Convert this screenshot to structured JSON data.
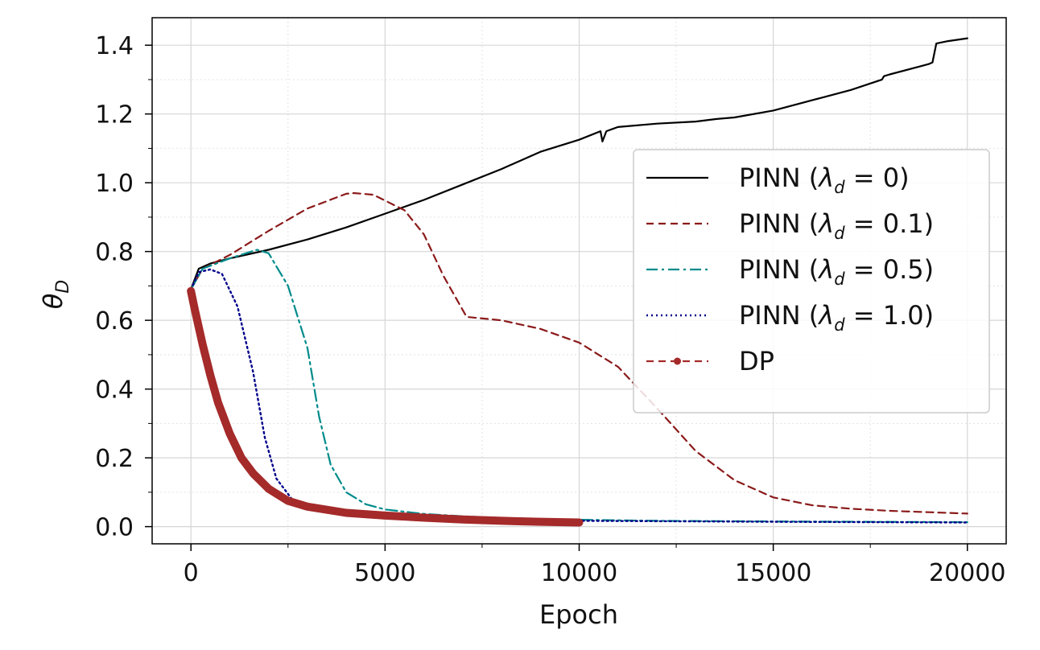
{
  "chart_data": {
    "type": "line",
    "title": "",
    "xlabel": "Epoch",
    "ylabel": "θ_D",
    "ylabel_main": "θ",
    "ylabel_sub": "D",
    "xlim": [
      -1000,
      21000
    ],
    "ylim": [
      -0.05,
      1.48
    ],
    "xticks": [
      0,
      5000,
      10000,
      15000,
      20000
    ],
    "xtick_labels": [
      "0",
      "5000",
      "10000",
      "15000",
      "20000"
    ],
    "yticks": [
      0.0,
      0.2,
      0.4,
      0.6,
      0.8,
      1.0,
      1.2,
      1.4
    ],
    "ytick_labels": [
      "0.0",
      "0.2",
      "0.4",
      "0.6",
      "0.8",
      "1.0",
      "1.2",
      "1.4"
    ],
    "grid": true,
    "legend_position": "center-right",
    "series": [
      {
        "name": "PINN (λ_d = 0)",
        "legend_prefix": "PINN (",
        "legend_lambda": "λ",
        "legend_sub": "d",
        "legend_suffix": " = 0)",
        "color": "#000000",
        "dash": "",
        "width": 2.2,
        "points": [
          [
            0,
            0.69
          ],
          [
            200,
            0.75
          ],
          [
            500,
            0.765
          ],
          [
            1000,
            0.78
          ],
          [
            2000,
            0.805
          ],
          [
            3000,
            0.835
          ],
          [
            4000,
            0.87
          ],
          [
            5000,
            0.91
          ],
          [
            6000,
            0.95
          ],
          [
            7000,
            0.995
          ],
          [
            8000,
            1.04
          ],
          [
            9000,
            1.09
          ],
          [
            10000,
            1.125
          ],
          [
            10550,
            1.15
          ],
          [
            10600,
            1.12
          ],
          [
            10700,
            1.15
          ],
          [
            11000,
            1.162
          ],
          [
            12000,
            1.172
          ],
          [
            13000,
            1.178
          ],
          [
            13500,
            1.185
          ],
          [
            14000,
            1.19
          ],
          [
            15000,
            1.21
          ],
          [
            16000,
            1.24
          ],
          [
            17000,
            1.27
          ],
          [
            17800,
            1.3
          ],
          [
            17850,
            1.31
          ],
          [
            18000,
            1.315
          ],
          [
            19000,
            1.345
          ],
          [
            19100,
            1.35
          ],
          [
            19200,
            1.405
          ],
          [
            19500,
            1.412
          ],
          [
            20000,
            1.42
          ]
        ]
      },
      {
        "name": "PINN (λ_d = 0.1)",
        "legend_prefix": "PINN (",
        "legend_lambda": "λ",
        "legend_sub": "d",
        "legend_suffix": " = 0.1)",
        "color": "#8b1a1a",
        "dash": "9,6",
        "width": 2.2,
        "points": [
          [
            0,
            0.69
          ],
          [
            300,
            0.75
          ],
          [
            1000,
            0.79
          ],
          [
            2000,
            0.86
          ],
          [
            3000,
            0.925
          ],
          [
            4000,
            0.968
          ],
          [
            4200,
            0.97
          ],
          [
            4700,
            0.965
          ],
          [
            5500,
            0.92
          ],
          [
            6000,
            0.85
          ],
          [
            6500,
            0.73
          ],
          [
            7000,
            0.63
          ],
          [
            7100,
            0.61
          ],
          [
            8000,
            0.6
          ],
          [
            9000,
            0.575
          ],
          [
            10000,
            0.535
          ],
          [
            11000,
            0.465
          ],
          [
            12000,
            0.345
          ],
          [
            13000,
            0.22
          ],
          [
            14000,
            0.135
          ],
          [
            15000,
            0.085
          ],
          [
            16000,
            0.062
          ],
          [
            17000,
            0.052
          ],
          [
            18000,
            0.046
          ],
          [
            19000,
            0.042
          ],
          [
            20000,
            0.038
          ]
        ]
      },
      {
        "name": "PINN (λ_d = 0.5)",
        "legend_prefix": "PINN (",
        "legend_lambda": "λ",
        "legend_sub": "d",
        "legend_suffix": " = 0.5)",
        "color": "#008b8b",
        "dash": "14,5,3,5",
        "width": 2.2,
        "points": [
          [
            0,
            0.69
          ],
          [
            300,
            0.75
          ],
          [
            1000,
            0.78
          ],
          [
            1700,
            0.805
          ],
          [
            2000,
            0.795
          ],
          [
            2500,
            0.7
          ],
          [
            3000,
            0.52
          ],
          [
            3300,
            0.32
          ],
          [
            3600,
            0.18
          ],
          [
            4000,
            0.1
          ],
          [
            4500,
            0.065
          ],
          [
            5000,
            0.05
          ],
          [
            6000,
            0.037
          ],
          [
            7000,
            0.03
          ],
          [
            8000,
            0.025
          ],
          [
            9000,
            0.022
          ],
          [
            10000,
            0.02
          ],
          [
            12000,
            0.017
          ],
          [
            15000,
            0.015
          ],
          [
            20000,
            0.013
          ]
        ]
      },
      {
        "name": "PINN (λ_d = 1.0)",
        "legend_prefix": "PINN (",
        "legend_lambda": "λ",
        "legend_sub": "d",
        "legend_suffix": " = 1.0)",
        "color": "#00008b",
        "dash": "2,4",
        "width": 2.4,
        "points": [
          [
            0,
            0.69
          ],
          [
            200,
            0.74
          ],
          [
            500,
            0.748
          ],
          [
            800,
            0.735
          ],
          [
            1200,
            0.64
          ],
          [
            1600,
            0.45
          ],
          [
            1900,
            0.26
          ],
          [
            2200,
            0.14
          ],
          [
            2600,
            0.08
          ],
          [
            3000,
            0.06
          ],
          [
            4000,
            0.04
          ],
          [
            5000,
            0.03
          ],
          [
            7000,
            0.022
          ],
          [
            10000,
            0.017
          ],
          [
            15000,
            0.014
          ],
          [
            20000,
            0.012
          ]
        ]
      },
      {
        "name": "DP",
        "legend_prefix": "DP",
        "legend_lambda": "",
        "legend_sub": "",
        "legend_suffix": "",
        "color": "#a52a2a",
        "dash": "",
        "width": 10,
        "points": [
          [
            0,
            0.685
          ],
          [
            100,
            0.63
          ],
          [
            300,
            0.53
          ],
          [
            500,
            0.44
          ],
          [
            700,
            0.36
          ],
          [
            1000,
            0.27
          ],
          [
            1300,
            0.2
          ],
          [
            1600,
            0.155
          ],
          [
            2000,
            0.11
          ],
          [
            2500,
            0.075
          ],
          [
            3000,
            0.058
          ],
          [
            4000,
            0.04
          ],
          [
            5000,
            0.032
          ],
          [
            6000,
            0.026
          ],
          [
            7000,
            0.021
          ],
          [
            8000,
            0.017
          ],
          [
            9000,
            0.014
          ],
          [
            10000,
            0.012
          ]
        ]
      }
    ]
  }
}
